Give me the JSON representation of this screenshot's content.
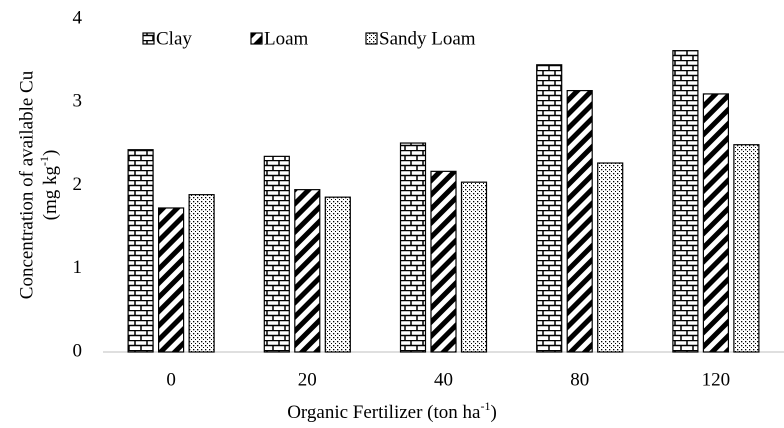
{
  "chart_data": {
    "type": "bar",
    "categories": [
      "0",
      "20",
      "40",
      "80",
      "120"
    ],
    "series": [
      {
        "name": "Clay",
        "color": "#000000",
        "pattern": "brick",
        "values": [
          2.43,
          2.35,
          2.51,
          3.45,
          3.62
        ]
      },
      {
        "name": "Loam",
        "color": "#000000",
        "pattern": "stripes",
        "values": [
          1.73,
          1.95,
          2.17,
          3.14,
          3.1
        ]
      },
      {
        "name": "Sandy Loam",
        "color": "#000000",
        "pattern": "dots",
        "values": [
          1.89,
          1.86,
          2.04,
          2.27,
          2.49
        ]
      }
    ],
    "y_label": {
      "line1": "Concentration of available Cu",
      "line2": [
        "(mg kg",
        "-1",
        ")"
      ]
    },
    "x_label": [
      "Organic Fertilizer (ton ha",
      "-1",
      ")"
    ],
    "ylim": [
      0,
      4
    ],
    "yticks": [
      0,
      1,
      2,
      3,
      4
    ],
    "grid": false,
    "legend": "top-left"
  }
}
